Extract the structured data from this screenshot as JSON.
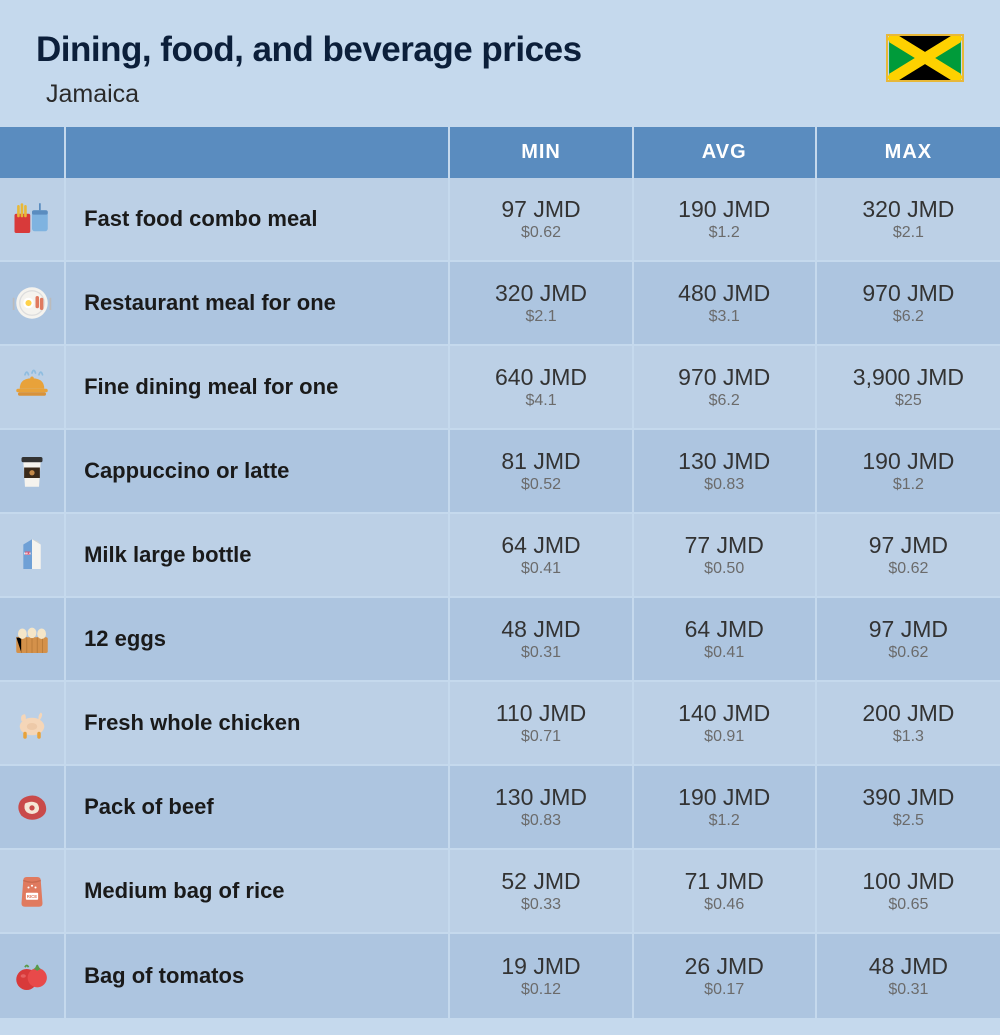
{
  "header": {
    "title": "Dining, food, and beverage prices",
    "subtitle": "Jamaica"
  },
  "columns": {
    "min": "MIN",
    "avg": "AVG",
    "max": "MAX"
  },
  "theme": {
    "page_bg": "#c5d9ed",
    "header_bg": "#5a8cbf",
    "header_text": "#ffffff",
    "row_a_bg": "#bcd0e6",
    "row_b_bg": "#adc5e0",
    "title_color": "#0c1f3a",
    "label_color": "#1a1a1a",
    "price_main_color": "#333333",
    "price_sub_color": "#6b6b6b",
    "title_fontsize": 35,
    "subtitle_fontsize": 25,
    "header_fontsize": 20,
    "label_fontsize": 22,
    "price_main_fontsize": 23,
    "price_sub_fontsize": 16
  },
  "flag": {
    "colors": {
      "green": "#009b3a",
      "yellow": "#fed100",
      "black": "#000000"
    },
    "border_color": "#e8b838"
  },
  "rows": [
    {
      "icon": "fast-food",
      "label": "Fast food combo meal",
      "min_jmd": "97 JMD",
      "min_usd": "$0.62",
      "avg_jmd": "190 JMD",
      "avg_usd": "$1.2",
      "max_jmd": "320 JMD",
      "max_usd": "$2.1"
    },
    {
      "icon": "restaurant",
      "label": "Restaurant meal for one",
      "min_jmd": "320 JMD",
      "min_usd": "$2.1",
      "avg_jmd": "480 JMD",
      "avg_usd": "$3.1",
      "max_jmd": "970 JMD",
      "max_usd": "$6.2"
    },
    {
      "icon": "fine-dining",
      "label": "Fine dining meal for one",
      "min_jmd": "640 JMD",
      "min_usd": "$4.1",
      "avg_jmd": "970 JMD",
      "avg_usd": "$6.2",
      "max_jmd": "3,900 JMD",
      "max_usd": "$25"
    },
    {
      "icon": "coffee",
      "label": "Cappuccino or latte",
      "min_jmd": "81 JMD",
      "min_usd": "$0.52",
      "avg_jmd": "130 JMD",
      "avg_usd": "$0.83",
      "max_jmd": "190 JMD",
      "max_usd": "$1.2"
    },
    {
      "icon": "milk",
      "label": "Milk large bottle",
      "min_jmd": "64 JMD",
      "min_usd": "$0.41",
      "avg_jmd": "77 JMD",
      "avg_usd": "$0.50",
      "max_jmd": "97 JMD",
      "max_usd": "$0.62"
    },
    {
      "icon": "eggs",
      "label": "12 eggs",
      "min_jmd": "48 JMD",
      "min_usd": "$0.31",
      "avg_jmd": "64 JMD",
      "avg_usd": "$0.41",
      "max_jmd": "97 JMD",
      "max_usd": "$0.62"
    },
    {
      "icon": "chicken",
      "label": "Fresh whole chicken",
      "min_jmd": "110 JMD",
      "min_usd": "$0.71",
      "avg_jmd": "140 JMD",
      "avg_usd": "$0.91",
      "max_jmd": "200 JMD",
      "max_usd": "$1.3"
    },
    {
      "icon": "beef",
      "label": "Pack of beef",
      "min_jmd": "130 JMD",
      "min_usd": "$0.83",
      "avg_jmd": "190 JMD",
      "avg_usd": "$1.2",
      "max_jmd": "390 JMD",
      "max_usd": "$2.5"
    },
    {
      "icon": "rice",
      "label": "Medium bag of rice",
      "min_jmd": "52 JMD",
      "min_usd": "$0.33",
      "avg_jmd": "71 JMD",
      "avg_usd": "$0.46",
      "max_jmd": "100 JMD",
      "max_usd": "$0.65"
    },
    {
      "icon": "tomato",
      "label": "Bag of tomatos",
      "min_jmd": "19 JMD",
      "min_usd": "$0.12",
      "avg_jmd": "26 JMD",
      "avg_usd": "$0.17",
      "max_jmd": "48 JMD",
      "max_usd": "$0.31"
    }
  ],
  "icon_colors": {
    "fast-food": {
      "fries": "#e8b838",
      "cup": "#7fb3e0"
    },
    "restaurant": {
      "plate": "#f5f3ee",
      "egg": "#ffd24a",
      "bacon": "#e07a5f"
    },
    "fine-dining": {
      "cloche": "#e8a23a",
      "steam": "#8fbde0"
    },
    "coffee": {
      "cup": "#f5f3ee",
      "sleeve": "#3a2a1a",
      "lid": "#333"
    },
    "milk": {
      "carton": "#f5f3ee",
      "accent": "#6fa0d6",
      "label": "#d05a7a"
    },
    "eggs": {
      "carton": "#d4914a",
      "egg": "#f5e6c8"
    },
    "chicken": {
      "body": "#f5d6b8",
      "accent": "#e8a23a"
    },
    "beef": {
      "meat": "#c94a4a",
      "fat": "#f5e6d6"
    },
    "rice": {
      "bag": "#e07a5f",
      "label": "#ffffff"
    },
    "tomato": {
      "body": "#d83a3a",
      "stem": "#5a9a4a"
    }
  }
}
